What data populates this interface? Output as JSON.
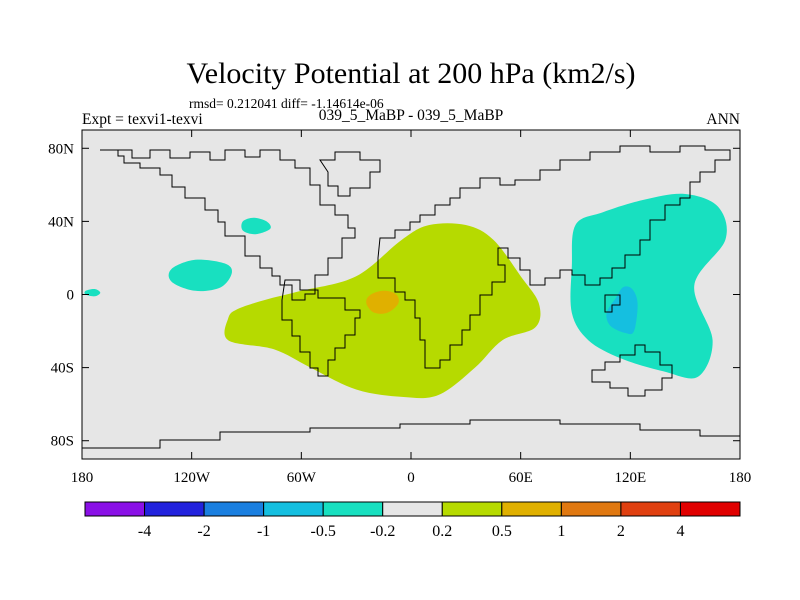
{
  "chart_data": {
    "type": "heatmap",
    "title": "Velocity Potential at 200 hPa (km2/s)",
    "stats_line": "rmsd= 0.212041 diff= -1.14614e-06",
    "left_label": "Expt = texvi1-texvi",
    "center_label": "039_5_MaBP - 039_5_MaBP",
    "right_label": "ANN",
    "x_ticks": [
      {
        "value": -180,
        "label": "180"
      },
      {
        "value": -120,
        "label": "120W"
      },
      {
        "value": -60,
        "label": "60W"
      },
      {
        "value": 0,
        "label": "0"
      },
      {
        "value": 60,
        "label": "60E"
      },
      {
        "value": 120,
        "label": "120E"
      },
      {
        "value": 180,
        "label": "180"
      }
    ],
    "y_ticks": [
      {
        "value": 80,
        "label": "80N"
      },
      {
        "value": 40,
        "label": "40N"
      },
      {
        "value": 0,
        "label": "0"
      },
      {
        "value": -40,
        "label": "40S"
      },
      {
        "value": -80,
        "label": "80S"
      }
    ],
    "xlim": [
      -180,
      180
    ],
    "ylim": [
      -90,
      90
    ],
    "background_color": "#e6e6e6",
    "colorbar": {
      "colors": [
        "#8a10e6",
        "#2222dd",
        "#1a7fe0",
        "#15bfe0",
        "#18e0c0",
        "#e6e6e6",
        "#b6da00",
        "#e0b000",
        "#e07810",
        "#e04010",
        "#e00000"
      ],
      "labels": [
        "-4",
        "-2",
        "-1",
        "-0.5",
        "-0.2",
        "0.2",
        "0.5",
        "1",
        "2",
        "4"
      ]
    },
    "regions": [
      {
        "name": "africa-positive-anomaly",
        "level": "0.2 to 0.5",
        "color": "#b6da00",
        "outline": [
          [
            -100,
            -13
          ],
          [
            -100,
            -25
          ],
          [
            -75,
            -30
          ],
          [
            -55,
            -40
          ],
          [
            -30,
            -52
          ],
          [
            -5,
            -56
          ],
          [
            15,
            -55
          ],
          [
            35,
            -40
          ],
          [
            50,
            -25
          ],
          [
            68,
            -18
          ],
          [
            70,
            -5
          ],
          [
            60,
            10
          ],
          [
            45,
            30
          ],
          [
            30,
            38
          ],
          [
            10,
            38
          ],
          [
            -5,
            30
          ],
          [
            -30,
            10
          ],
          [
            -60,
            2
          ],
          [
            -80,
            -3
          ],
          [
            -95,
            -8
          ]
        ]
      },
      {
        "name": "atlantic-positive-max",
        "level": "0.5 to 1",
        "color": "#e0b000",
        "outline": [
          [
            -24,
            -2
          ],
          [
            -20,
            1
          ],
          [
            -14,
            2
          ],
          [
            -8,
            0
          ],
          [
            -7,
            -5
          ],
          [
            -13,
            -10
          ],
          [
            -20,
            -10
          ],
          [
            -24,
            -6
          ]
        ]
      },
      {
        "name": "indonesia-negative-anomaly",
        "level": "-0.5 to -0.2",
        "color": "#18e0c0",
        "outline": [
          [
            90,
            38
          ],
          [
            105,
            45
          ],
          [
            128,
            52
          ],
          [
            150,
            55
          ],
          [
            168,
            48
          ],
          [
            172,
            30
          ],
          [
            155,
            5
          ],
          [
            165,
            -25
          ],
          [
            157,
            -45
          ],
          [
            138,
            -42
          ],
          [
            115,
            -35
          ],
          [
            97,
            -25
          ],
          [
            88,
            -10
          ],
          [
            88,
            15
          ]
        ]
      },
      {
        "name": "indonesia-negative-max",
        "level": "-1 to -0.5",
        "color": "#15bfe0",
        "outline": [
          [
            112,
            -2
          ],
          [
            116,
            4
          ],
          [
            121,
            3
          ],
          [
            124,
            -5
          ],
          [
            122,
            -20
          ],
          [
            117,
            -21
          ],
          [
            109,
            -17
          ],
          [
            107,
            -10
          ]
        ]
      },
      {
        "name": "north-pacific-negative",
        "level": "-0.5 to -0.2",
        "color": "#18e0c0",
        "outline": [
          [
            -92,
            40
          ],
          [
            -86,
            42
          ],
          [
            -79,
            40
          ],
          [
            -77,
            36
          ],
          [
            -85,
            33
          ],
          [
            -92,
            35
          ]
        ]
      },
      {
        "name": "east-pacific-negative",
        "level": "-0.5 to -0.2",
        "color": "#18e0c0",
        "outline": [
          [
            -131,
            14
          ],
          [
            -118,
            19
          ],
          [
            -102,
            17
          ],
          [
            -98,
            12
          ],
          [
            -104,
            4
          ],
          [
            -118,
            2
          ],
          [
            -131,
            7
          ]
        ]
      },
      {
        "name": "dateline-negative-spot",
        "level": "-0.5 to -0.2",
        "color": "#18e0c0",
        "outline": [
          [
            -178,
            2
          ],
          [
            -173,
            3
          ],
          [
            -170,
            1
          ],
          [
            -173,
            -1
          ],
          [
            -178,
            0
          ]
        ]
      }
    ]
  }
}
